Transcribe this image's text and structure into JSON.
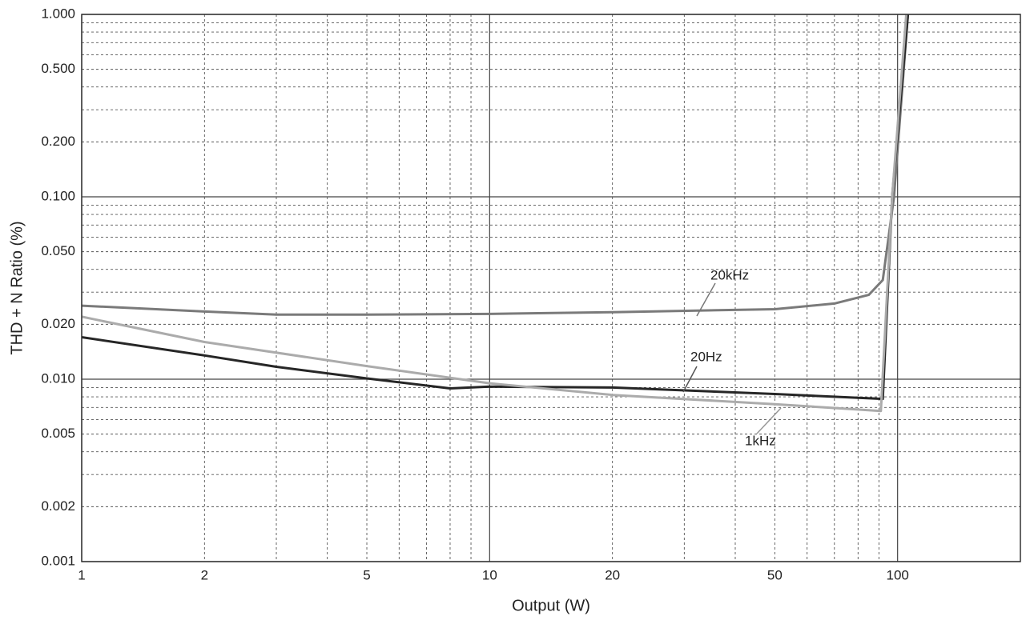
{
  "chart_data": {
    "type": "line",
    "x_label": "Output (W)",
    "y_label": "THD + N Ratio (%)",
    "log_x": true,
    "log_y": true,
    "grid": true,
    "xlim": [
      1,
      200
    ],
    "ylim": [
      0.001,
      1
    ],
    "xticks": [
      1,
      2,
      5,
      10,
      20,
      50,
      100
    ],
    "yticks": [
      0.001,
      0.002,
      0.005,
      {
        "value": 0.01,
        "label": "0.010"
      },
      {
        "value": 0.02,
        "label": "0.020"
      },
      {
        "value": 0.05,
        "label": "0.050"
      },
      {
        "value": 0.1,
        "label": "0.100"
      },
      {
        "value": 0.2,
        "label": "0.200"
      },
      {
        "value": 0.5,
        "label": "0.500"
      },
      {
        "value": 1,
        "label": "1.000"
      }
    ],
    "x_minor_ticks": [
      3,
      4,
      6,
      7,
      8,
      9,
      30,
      40,
      60,
      70,
      80,
      90
    ],
    "y_minor_ticks": [
      0.003,
      0.004,
      0.006,
      0.007,
      0.008,
      0.009,
      0.03,
      0.04,
      0.06,
      0.07,
      0.08,
      0.09,
      0.3,
      0.4,
      0.6,
      0.7,
      0.8,
      0.9
    ],
    "series": [
      {
        "name": "20kHz",
        "color": "#7a7a7a",
        "x": [
          1,
          2,
          3,
          5,
          10,
          20,
          50,
          70,
          85,
          92,
          98,
          106
        ],
        "values": [
          0.0253,
          0.0235,
          0.0226,
          0.0226,
          0.0228,
          0.0233,
          0.0242,
          0.026,
          0.029,
          0.035,
          0.1,
          1
        ]
      },
      {
        "name": "20Hz",
        "color": "#262626",
        "x": [
          1,
          2,
          3,
          5,
          8,
          10,
          20,
          50,
          92,
          97,
          106
        ],
        "values": [
          0.017,
          0.0135,
          0.0117,
          0.0101,
          0.0089,
          0.0091,
          0.009,
          0.0083,
          0.0078,
          0.1,
          1
        ]
      },
      {
        "name": "1kHz",
        "color": "#ababab",
        "x": [
          1,
          2,
          5,
          10,
          20,
          50,
          91,
          97,
          105
        ],
        "values": [
          0.022,
          0.016,
          0.0118,
          0.0095,
          0.0082,
          0.0073,
          0.0067,
          0.1,
          1
        ]
      }
    ]
  }
}
